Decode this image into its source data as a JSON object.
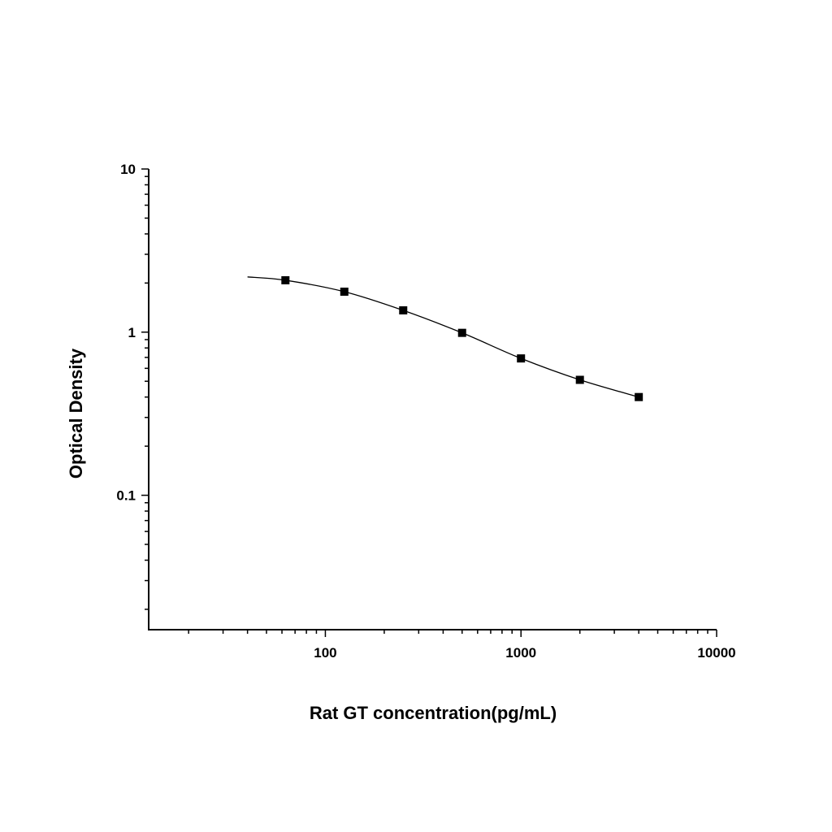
{
  "chart_data": {
    "type": "scatter",
    "title": "",
    "xlabel": "Rat GT concentration(pg/mL)",
    "ylabel": "Optical Density",
    "xscale": "log",
    "yscale": "log",
    "xlim": [
      12.5,
      10000
    ],
    "ylim": [
      0.015,
      10
    ],
    "xticks": [
      100,
      1000,
      10000
    ],
    "xtick_labels": [
      "100",
      "1000",
      "10000"
    ],
    "yticks": [
      0.1,
      1,
      10
    ],
    "ytick_labels": [
      "0.1",
      "1",
      "10"
    ],
    "grid": false,
    "legend": "none",
    "marker": "square",
    "fit_curve": true,
    "color": "#000000",
    "series": [
      {
        "x": [
          62.5,
          125,
          250,
          500,
          1000,
          2000,
          4000
        ],
        "y": [
          2.08,
          1.77,
          1.36,
          0.99,
          0.69,
          0.51,
          0.4
        ]
      }
    ]
  }
}
